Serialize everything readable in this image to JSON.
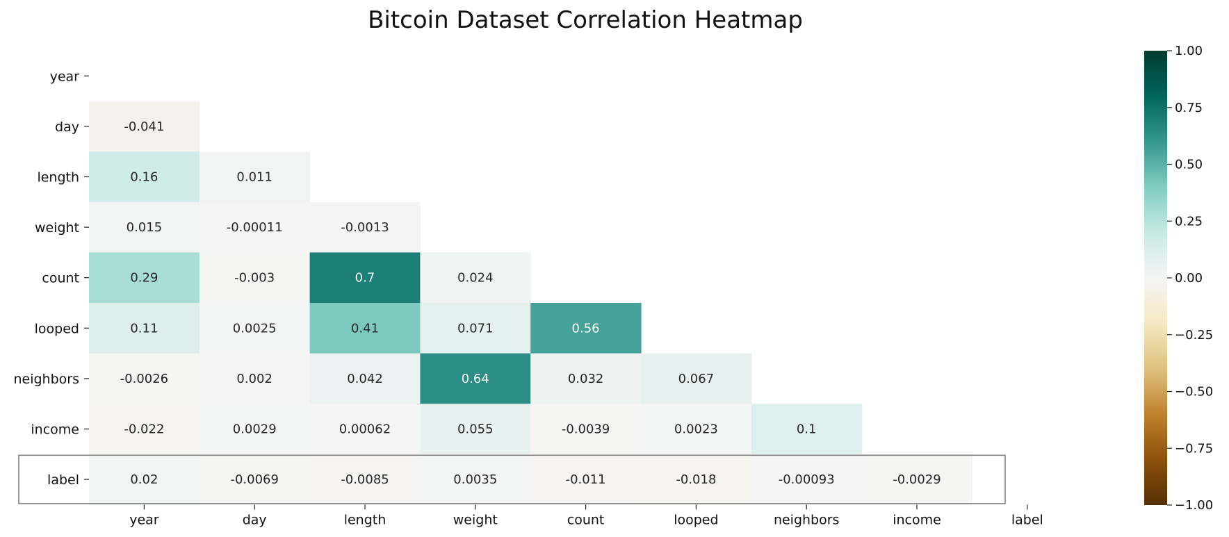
{
  "chart_data": {
    "type": "heatmap",
    "title": "Bitcoin Dataset Correlation Heatmap",
    "row_labels": [
      "year",
      "day",
      "length",
      "weight",
      "count",
      "looped",
      "neighbors",
      "income",
      "label"
    ],
    "col_labels": [
      "year",
      "day",
      "length",
      "weight",
      "count",
      "looped",
      "neighbors",
      "income",
      "label"
    ],
    "mask": "upper-triangle-including-diagonal",
    "values": [
      [
        null,
        null,
        null,
        null,
        null,
        null,
        null,
        null,
        null
      ],
      [
        "-0.041",
        null,
        null,
        null,
        null,
        null,
        null,
        null,
        null
      ],
      [
        "0.16",
        "0.011",
        null,
        null,
        null,
        null,
        null,
        null,
        null
      ],
      [
        "0.015",
        "-0.00011",
        "-0.0013",
        null,
        null,
        null,
        null,
        null,
        null
      ],
      [
        "0.29",
        "-0.003",
        "0.7",
        "0.024",
        null,
        null,
        null,
        null,
        null
      ],
      [
        "0.11",
        "0.0025",
        "0.41",
        "0.071",
        "0.56",
        null,
        null,
        null,
        null
      ],
      [
        "-0.0026",
        "0.002",
        "0.042",
        "0.64",
        "0.032",
        "0.067",
        null,
        null,
        null
      ],
      [
        "-0.022",
        "0.0029",
        "0.00062",
        "0.055",
        "-0.0039",
        "0.0023",
        "0.1",
        null,
        null
      ],
      [
        "0.02",
        "-0.0069",
        "-0.0085",
        "0.0035",
        "-0.011",
        "-0.018",
        "-0.00093",
        "-0.0029",
        null
      ]
    ],
    "colormap": "BrBG",
    "vmin": -1.0,
    "vmax": 1.0,
    "colorbar_ticks": [
      "−1.00",
      "−0.75",
      "−0.50",
      "−0.25",
      "0.00",
      "0.25",
      "0.50",
      "0.75",
      "1.00"
    ],
    "highlighted_row": "label",
    "grid": false
  }
}
